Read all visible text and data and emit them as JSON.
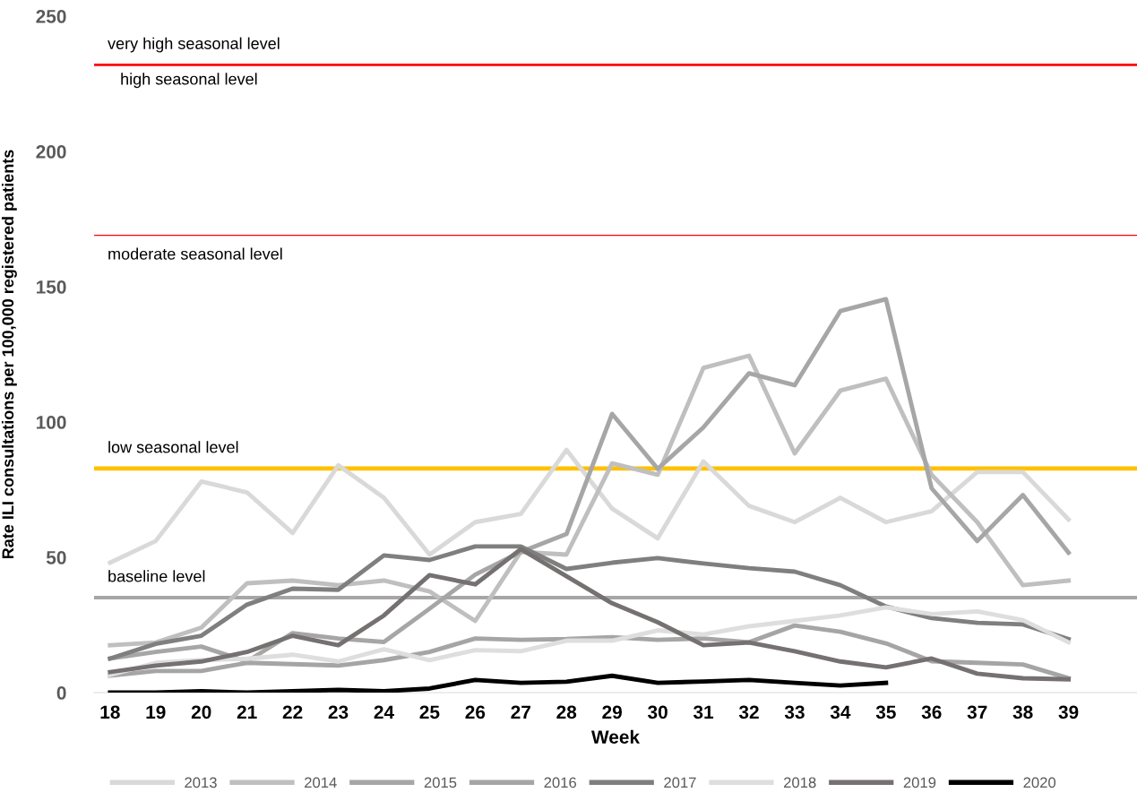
{
  "chart_data": {
    "type": "line",
    "ylabel": "Rate ILI consultations per 100,000 registered patients",
    "xlabel": "Week",
    "categories": [
      "18",
      "19",
      "20",
      "21",
      "22",
      "23",
      "24",
      "25",
      "26",
      "27",
      "28",
      "29",
      "30",
      "31",
      "32",
      "33",
      "34",
      "35",
      "36",
      "37",
      "38",
      "39"
    ],
    "series": [
      {
        "name": "2013",
        "color": "#d9d9d9",
        "values": [
          48,
          56,
          78,
          74,
          59,
          84,
          72,
          51,
          63,
          66,
          89.7,
          68,
          57,
          85.4,
          69,
          63,
          72,
          63,
          67,
          81.5,
          81.5,
          64
        ]
      },
      {
        "name": "2014",
        "color": "#bfbfbf",
        "values": [
          17.5,
          18.5,
          24,
          40.4,
          41.4,
          39.7,
          41.4,
          37.4,
          26.5,
          52,
          51,
          84.7,
          80.5,
          120,
          124.5,
          88.4,
          111.6,
          116,
          80.5,
          63,
          39.7,
          41.4
        ]
      },
      {
        "name": "2015",
        "color": "#a6a6a6",
        "values": [
          12.6,
          15,
          17,
          11.5,
          22,
          20,
          18.7,
          31,
          43.6,
          52,
          58.6,
          103,
          82.7,
          98,
          118,
          113.6,
          141,
          145.4,
          75.5,
          56,
          73,
          51.7
        ]
      },
      {
        "name": "2016",
        "color": "#a5a5a5",
        "values": [
          6.3,
          8,
          8,
          11,
          10.5,
          10,
          12,
          15,
          20,
          19.5,
          19.8,
          20.5,
          19.5,
          20,
          18.6,
          24.8,
          22.5,
          18.2,
          11.6,
          11,
          10.4,
          5.3
        ]
      },
      {
        "name": "2017",
        "color": "#7f7f7f",
        "values": [
          12.6,
          18,
          21,
          32.5,
          38.4,
          38,
          50.7,
          49,
          54,
          54,
          45.7,
          48,
          49.7,
          47.7,
          46,
          44.7,
          39.7,
          31.8,
          27.5,
          25.8,
          25.2,
          19.8
        ]
      },
      {
        "name": "2018",
        "color": "#dedede",
        "values": [
          6.5,
          11,
          12,
          12.5,
          14,
          11.5,
          16,
          12,
          15.7,
          15.3,
          19.2,
          19.2,
          23,
          21.5,
          24.5,
          26.5,
          28.5,
          31.5,
          29,
          30,
          26.8,
          18.6
        ]
      },
      {
        "name": "2019",
        "color": "#767171",
        "values": [
          7.6,
          10,
          11.5,
          15,
          21,
          17.5,
          28.5,
          43.4,
          40,
          53,
          43,
          33,
          26,
          17.5,
          18.5,
          15.3,
          11.5,
          9.3,
          12.6,
          7,
          5.3,
          4.9
        ]
      },
      {
        "name": "2020",
        "color": "#000000",
        "values": [
          0,
          0,
          0.5,
          0,
          0.5,
          1,
          0.5,
          1.5,
          4.7,
          3.6,
          4,
          6.2,
          3.6,
          4.1,
          4.7,
          3.6,
          2.6,
          3.6,
          null,
          null,
          null,
          null
        ]
      }
    ],
    "ylim": [
      0,
      250
    ],
    "yticks": [
      0,
      50,
      100,
      150,
      200,
      250
    ],
    "ref_lines": [
      {
        "axis": "y",
        "value": 232,
        "color": "#ff0000",
        "label": "very high seasonal level"
      },
      {
        "axis": "y",
        "value": 169,
        "color": "#ff0000",
        "label": "moderate seasonal level"
      },
      {
        "axis": "y",
        "value": 82.8,
        "color": "#ffc000",
        "label": "low seasonal level"
      },
      {
        "axis": "y",
        "value": 35.1,
        "color": "#a6a6a6",
        "label": "baseline level"
      }
    ],
    "annotations": [
      "high seasonal level"
    ],
    "grid": false,
    "legend": "bottom",
    "marker": "none",
    "line_style": "solid"
  }
}
